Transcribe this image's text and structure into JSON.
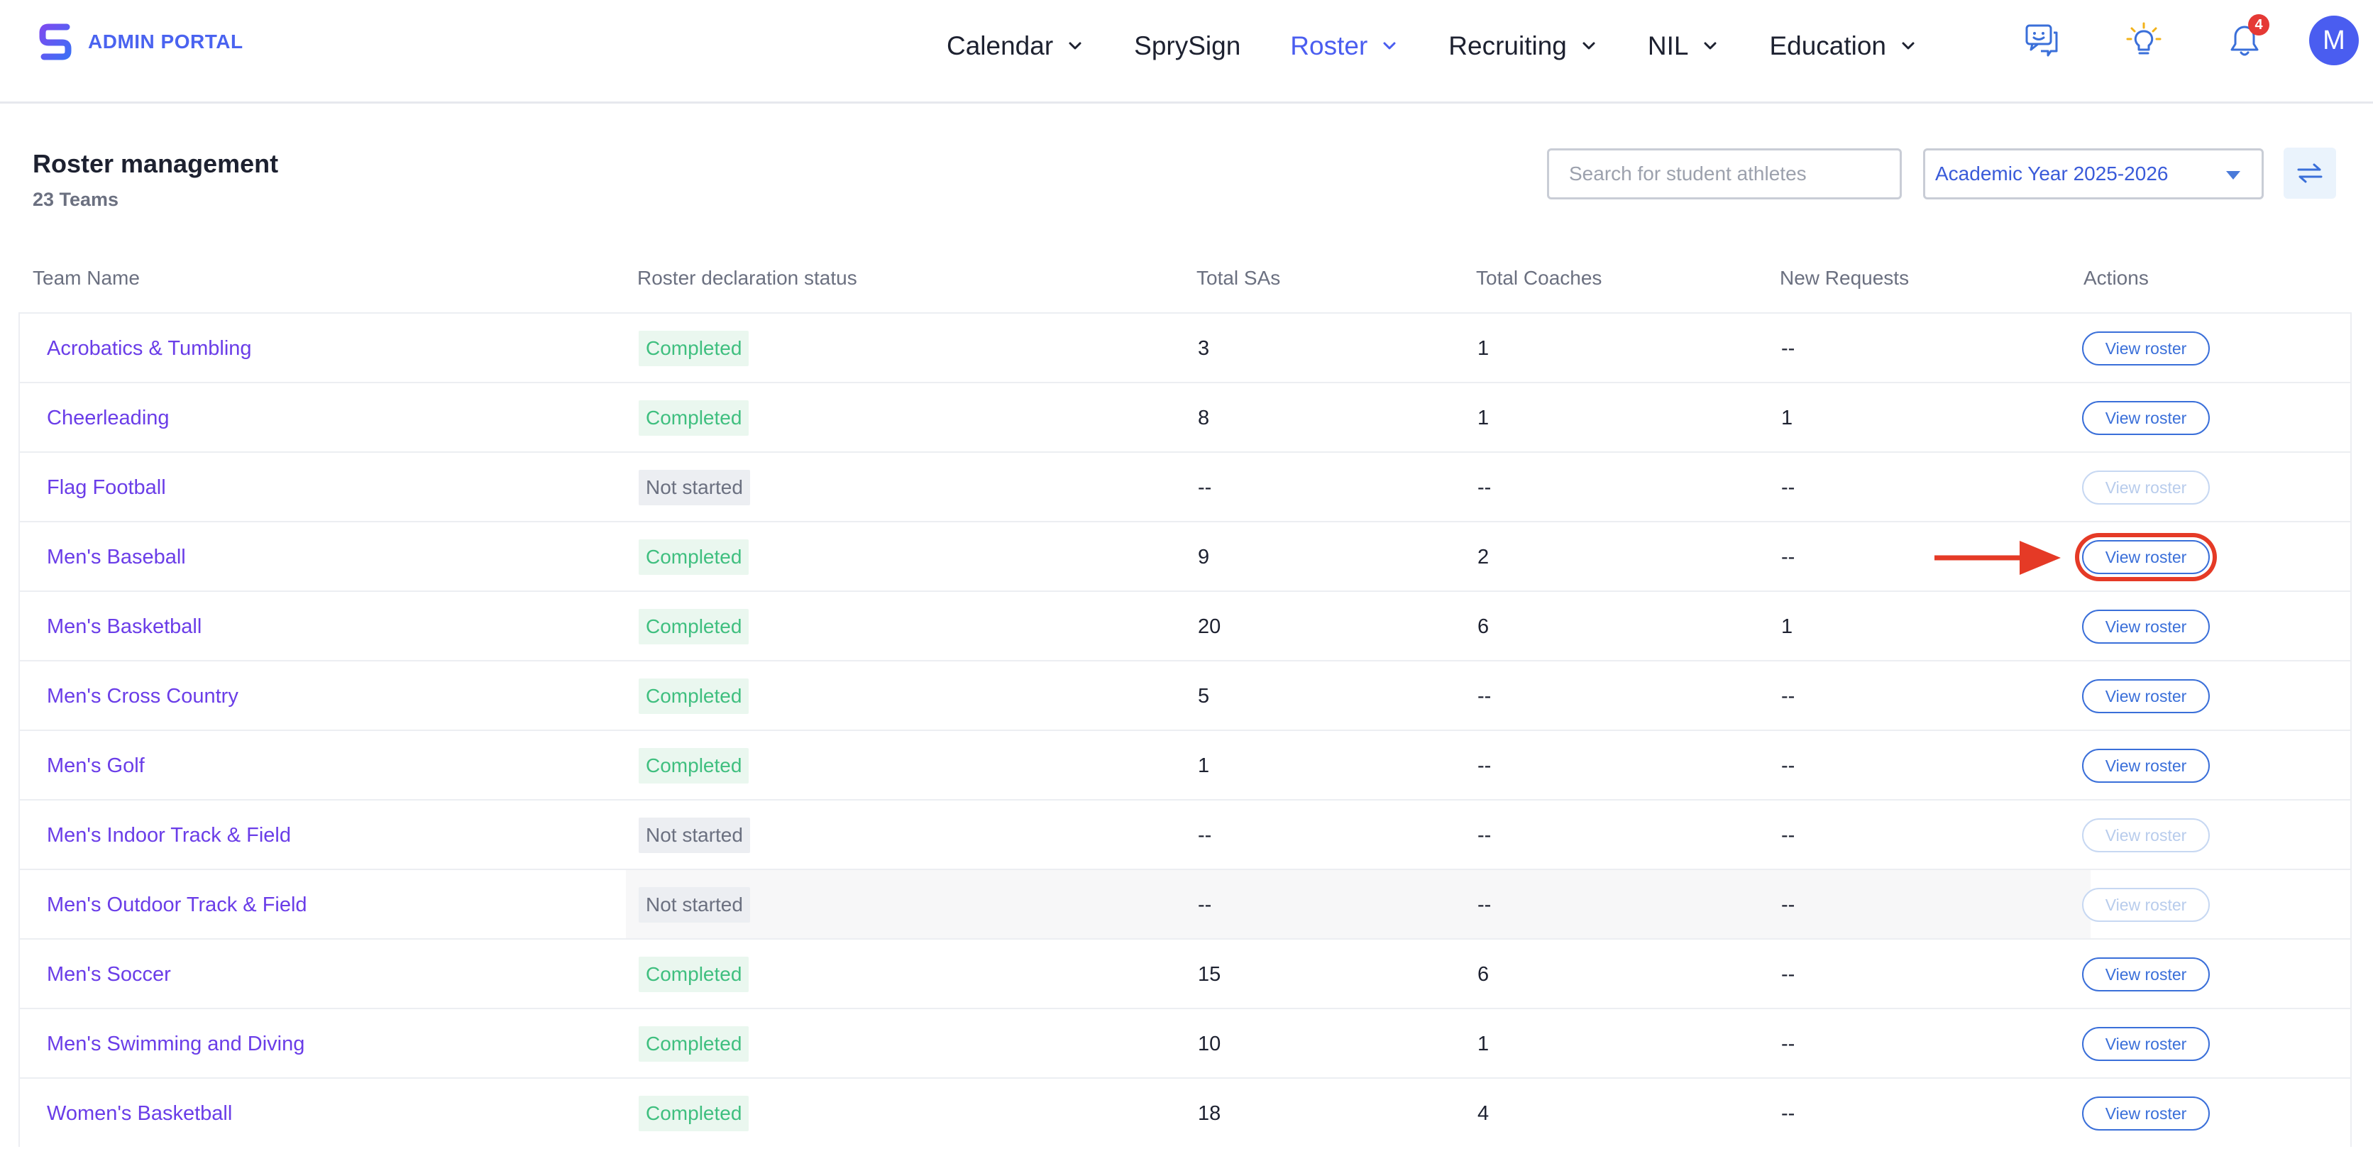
{
  "brand": {
    "name": "ADMIN PORTAL"
  },
  "nav": [
    {
      "label": "Calendar",
      "dropdown": true,
      "active": false
    },
    {
      "label": "SprySign",
      "dropdown": false,
      "active": false
    },
    {
      "label": "Roster",
      "dropdown": true,
      "active": true
    },
    {
      "label": "Recruiting",
      "dropdown": true,
      "active": false
    },
    {
      "label": "NIL",
      "dropdown": true,
      "active": false
    },
    {
      "label": "Education",
      "dropdown": true,
      "active": false
    }
  ],
  "header_icons": {
    "chat": "chat-support-icon",
    "ideas": "lightbulb-icon",
    "notifications": "bell-icon",
    "notification_count": "4",
    "avatar_initial": "M"
  },
  "page": {
    "title": "Roster management",
    "subtitle": "23 Teams",
    "search_placeholder": "Search for student athletes",
    "academic_year": "Academic Year 2025-2026"
  },
  "table": {
    "headers": {
      "team": "Team Name",
      "status": "Roster declaration status",
      "sas": "Total SAs",
      "coaches": "Total Coaches",
      "requests": "New Requests",
      "actions": "Actions"
    },
    "action_label": "View roster",
    "rows": [
      {
        "team": "Acrobatics & Tumbling",
        "status": "Completed",
        "sas": "3",
        "coaches": "1",
        "requests": "--",
        "enabled": true
      },
      {
        "team": "Cheerleading",
        "status": "Completed",
        "sas": "8",
        "coaches": "1",
        "requests": "1",
        "enabled": true
      },
      {
        "team": "Flag Football",
        "status": "Not started",
        "sas": "--",
        "coaches": "--",
        "requests": "--",
        "enabled": false
      },
      {
        "team": "Men's Baseball",
        "status": "Completed",
        "sas": "9",
        "coaches": "2",
        "requests": "--",
        "enabled": true,
        "marked": true
      },
      {
        "team": "Men's Basketball",
        "status": "Completed",
        "sas": "20",
        "coaches": "6",
        "requests": "1",
        "enabled": true
      },
      {
        "team": "Men's Cross Country",
        "status": "Completed",
        "sas": "5",
        "coaches": "--",
        "requests": "--",
        "enabled": true
      },
      {
        "team": "Men's Golf",
        "status": "Completed",
        "sas": "1",
        "coaches": "--",
        "requests": "--",
        "enabled": true
      },
      {
        "team": "Men's Indoor Track & Field",
        "status": "Not started",
        "sas": "--",
        "coaches": "--",
        "requests": "--",
        "enabled": false
      },
      {
        "team": "Men's Outdoor Track & Field",
        "status": "Not started",
        "sas": "--",
        "coaches": "--",
        "requests": "--",
        "enabled": false,
        "highlighted": true
      },
      {
        "team": "Men's Soccer",
        "status": "Completed",
        "sas": "15",
        "coaches": "6",
        "requests": "--",
        "enabled": true
      },
      {
        "team": "Men's Swimming and Diving",
        "status": "Completed",
        "sas": "10",
        "coaches": "1",
        "requests": "--",
        "enabled": true
      },
      {
        "team": "Women's Basketball",
        "status": "Completed",
        "sas": "18",
        "coaches": "4",
        "requests": "--",
        "enabled": true
      }
    ]
  },
  "colors": {
    "accent": "#4a5df0",
    "team_link": "#6a3de8",
    "completed": "#3fbf7f",
    "annotation": "#e53a26"
  }
}
